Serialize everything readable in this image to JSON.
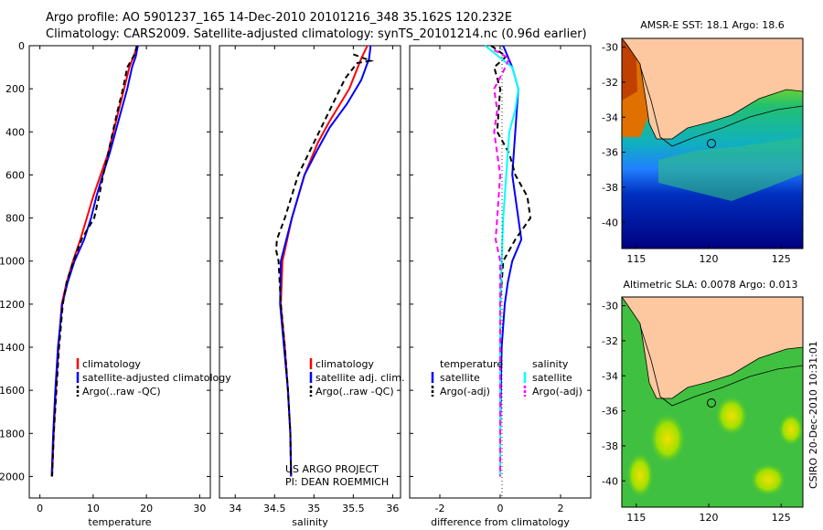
{
  "header": {
    "line1": "Argo profile: AO 5901237_165 14-Dec-2010 20101216_348 35.162S 120.232E",
    "line2": "Climatology: CARS2009. Satellite-adjusted climatology: synTS_20101214.nc (0.96d earlier)"
  },
  "chart_data": [
    {
      "type": "line",
      "name": "temperature-profile",
      "xlabel": "temperature",
      "ylabel": "",
      "xlim": [
        -2,
        32
      ],
      "ylim": [
        2100,
        0
      ],
      "xticks": [
        0,
        10,
        20,
        30
      ],
      "yticks": [
        0,
        200,
        400,
        600,
        800,
        1000,
        1200,
        1400,
        1600,
        1800,
        2000
      ],
      "legend": [
        "climatology",
        "satellite-adjusted climatology",
        "Argo(..raw -QC)"
      ],
      "series": [
        {
          "name": "climatology",
          "color": "#ff0000",
          "dash": "",
          "points": [
            [
              18.3,
              0
            ],
            [
              17.6,
              50
            ],
            [
              16.8,
              100
            ],
            [
              15.8,
              200
            ],
            [
              14.8,
              300
            ],
            [
              13.8,
              400
            ],
            [
              12.8,
              500
            ],
            [
              11.4,
              600
            ],
            [
              10.0,
              700
            ],
            [
              8.8,
              800
            ],
            [
              7.6,
              900
            ],
            [
              6.2,
              1000
            ],
            [
              5.0,
              1100
            ],
            [
              4.1,
              1200
            ],
            [
              3.5,
              1400
            ],
            [
              3.0,
              1600
            ],
            [
              2.6,
              1800
            ],
            [
              2.3,
              2000
            ]
          ]
        },
        {
          "name": "satellite-adjusted climatology",
          "color": "#0000ff",
          "dash": "",
          "points": [
            [
              18.4,
              0
            ],
            [
              18.0,
              50
            ],
            [
              17.3,
              100
            ],
            [
              16.4,
              200
            ],
            [
              15.3,
              300
            ],
            [
              14.2,
              400
            ],
            [
              13.1,
              500
            ],
            [
              11.8,
              600
            ],
            [
              10.6,
              700
            ],
            [
              9.6,
              800
            ],
            [
              8.3,
              900
            ],
            [
              6.5,
              1000
            ],
            [
              5.2,
              1100
            ],
            [
              4.2,
              1200
            ],
            [
              3.4,
              1400
            ],
            [
              2.9,
              1600
            ],
            [
              2.5,
              1800
            ],
            [
              2.2,
              2000
            ]
          ]
        },
        {
          "name": "Argo(..raw -QC)",
          "color": "#000000",
          "dash": "6,4",
          "points": [
            [
              18.2,
              0
            ],
            [
              17.8,
              40
            ],
            [
              16.4,
              100
            ],
            [
              15.6,
              200
            ],
            [
              14.6,
              300
            ],
            [
              13.7,
              400
            ],
            [
              12.8,
              500
            ],
            [
              11.9,
              600
            ],
            [
              11.1,
              700
            ],
            [
              10.2,
              800
            ],
            [
              7.8,
              900
            ],
            [
              6.3,
              1000
            ],
            [
              5.0,
              1100
            ],
            [
              4.3,
              1200
            ],
            [
              3.6,
              1400
            ],
            [
              3.1,
              1600
            ],
            [
              2.6,
              1800
            ],
            [
              2.3,
              2000
            ]
          ]
        }
      ]
    },
    {
      "type": "line",
      "name": "salinity-profile",
      "xlabel": "salinity",
      "xlim": [
        33.8,
        36.1
      ],
      "ylim": [
        2100,
        0
      ],
      "xticks": [
        34,
        34.5,
        35,
        35.5,
        36
      ],
      "legend": [
        "climatology",
        "satellite adj. clim.",
        "Argo(..raw -QC)"
      ],
      "annotation": [
        "US ARGO PROJECT",
        "PI: DEAN ROEMMICH"
      ],
      "series": [
        {
          "name": "climatology",
          "color": "#ff0000",
          "dash": "",
          "points": [
            [
              35.68,
              0
            ],
            [
              35.6,
              60
            ],
            [
              35.45,
              200
            ],
            [
              35.2,
              350
            ],
            [
              35.05,
              450
            ],
            [
              34.88,
              600
            ],
            [
              34.72,
              800
            ],
            [
              34.6,
              1000
            ],
            [
              34.58,
              1200
            ],
            [
              34.63,
              1400
            ],
            [
              34.67,
              1600
            ],
            [
              34.7,
              1800
            ],
            [
              34.71,
              2000
            ]
          ]
        },
        {
          "name": "satellite adj. clim.",
          "color": "#0000ff",
          "dash": "",
          "points": [
            [
              35.72,
              0
            ],
            [
              35.7,
              60
            ],
            [
              35.6,
              160
            ],
            [
              35.42,
              270
            ],
            [
              35.2,
              380
            ],
            [
              35.05,
              480
            ],
            [
              34.88,
              600
            ],
            [
              34.72,
              800
            ],
            [
              34.58,
              1000
            ],
            [
              34.57,
              1200
            ],
            [
              34.62,
              1400
            ],
            [
              34.67,
              1600
            ],
            [
              34.7,
              1800
            ],
            [
              34.71,
              2000
            ]
          ]
        },
        {
          "name": "Argo(..raw -QC)",
          "color": "#000000",
          "dash": "6,4",
          "points": [
            [
              35.5,
              40
            ],
            [
              35.72,
              70
            ],
            [
              35.55,
              80
            ],
            [
              35.4,
              150
            ],
            [
              35.2,
              300
            ],
            [
              35.0,
              450
            ],
            [
              34.8,
              600
            ],
            [
              34.63,
              800
            ],
            [
              34.53,
              900
            ],
            [
              34.52,
              950
            ],
            [
              34.55,
              1000
            ],
            [
              34.58,
              1200
            ],
            [
              34.63,
              1400
            ],
            [
              34.67,
              1600
            ],
            [
              34.7,
              1800
            ],
            [
              34.71,
              2000
            ]
          ]
        }
      ]
    },
    {
      "type": "line",
      "name": "difference-profile",
      "xlabel": "difference from climatology",
      "xlim": [
        -3,
        3
      ],
      "ylim": [
        2100,
        0
      ],
      "xticks": [
        -2,
        0,
        2
      ],
      "legend_temperature": {
        "title": "temperature",
        "items": [
          "satellite",
          "Argo(-adj)"
        ]
      },
      "legend_salinity": {
        "title": "salinity",
        "items": [
          "satellite",
          "Argo(-adj)"
        ]
      },
      "series": [
        {
          "name": "temperature satellite",
          "color": "#0000ff",
          "dash": "",
          "points": [
            [
              0.1,
              0
            ],
            [
              0.4,
              100
            ],
            [
              0.6,
              200
            ],
            [
              0.5,
              400
            ],
            [
              0.4,
              600
            ],
            [
              0.6,
              800
            ],
            [
              0.7,
              900
            ],
            [
              0.4,
              1000
            ],
            [
              0.25,
              1100
            ],
            [
              0.15,
              1200
            ],
            [
              0.05,
              1400
            ],
            [
              0.02,
              1600
            ],
            [
              0.0,
              1800
            ],
            [
              0.0,
              2000
            ]
          ]
        },
        {
          "name": "temperature Argo(-adj)",
          "color": "#000000",
          "dash": "6,4",
          "points": [
            [
              -0.3,
              0
            ],
            [
              0.2,
              50
            ],
            [
              -0.2,
              100
            ],
            [
              0.0,
              200
            ],
            [
              -0.1,
              400
            ],
            [
              0.3,
              500
            ],
            [
              0.5,
              600
            ],
            [
              0.9,
              700
            ],
            [
              1.0,
              800
            ],
            [
              0.5,
              900
            ],
            [
              0.1,
              1000
            ],
            [
              0.0,
              1200
            ],
            [
              0.0,
              1400
            ],
            [
              0.0,
              1600
            ],
            [
              0.0,
              1800
            ],
            [
              0.0,
              2000
            ]
          ]
        },
        {
          "name": "salinity satellite",
          "color": "#00ffff",
          "dash": "",
          "points": [
            [
              -0.5,
              0
            ],
            [
              0.4,
              100
            ],
            [
              0.6,
              200
            ],
            [
              0.5,
              300
            ],
            [
              0.3,
              400
            ],
            [
              0.2,
              600
            ],
            [
              0.1,
              800
            ],
            [
              0.05,
              1000
            ],
            [
              0.0,
              1200
            ],
            [
              0.0,
              1400
            ],
            [
              0.0,
              1600
            ],
            [
              0.0,
              1800
            ],
            [
              0.0,
              2000
            ]
          ]
        },
        {
          "name": "salinity Argo(-adj)",
          "color": "#ff00ff",
          "dash": "6,4",
          "points": [
            [
              -0.2,
              20
            ],
            [
              0.3,
              60
            ],
            [
              0.1,
              120
            ],
            [
              -0.2,
              200
            ],
            [
              -0.1,
              300
            ],
            [
              -0.2,
              400
            ],
            [
              0.0,
              600
            ],
            [
              -0.1,
              800
            ],
            [
              -0.15,
              900
            ],
            [
              0.0,
              1000
            ],
            [
              0.0,
              1200
            ],
            [
              0.0,
              1400
            ],
            [
              0.0,
              1600
            ],
            [
              0.0,
              1800
            ],
            [
              0.0,
              2000
            ]
          ]
        }
      ]
    },
    {
      "type": "heatmap",
      "name": "sst-map",
      "title": "AMSR-E SST: 18.1 Argo: 18.6",
      "xlim": [
        114,
        126.5
      ],
      "ylim": [
        -41.5,
        -29.5
      ],
      "xticks": [
        115,
        120,
        125
      ],
      "yticks": [
        -30,
        -32,
        -34,
        -36,
        -38,
        -40
      ],
      "float_position": [
        120.232,
        -35.162
      ]
    },
    {
      "type": "heatmap",
      "name": "sla-map",
      "title": "Altimetric SLA: 0.0078 Argo: 0.013",
      "xlim": [
        114,
        126.5
      ],
      "ylim": [
        -41.5,
        -29.5
      ],
      "xticks": [
        115,
        120,
        125
      ],
      "yticks": [
        -30,
        -32,
        -34,
        -36,
        -38,
        -40
      ],
      "float_position": [
        120.232,
        -35.162
      ]
    }
  ],
  "credit": "CSIRO 20-Dec-2010 10:31:01"
}
